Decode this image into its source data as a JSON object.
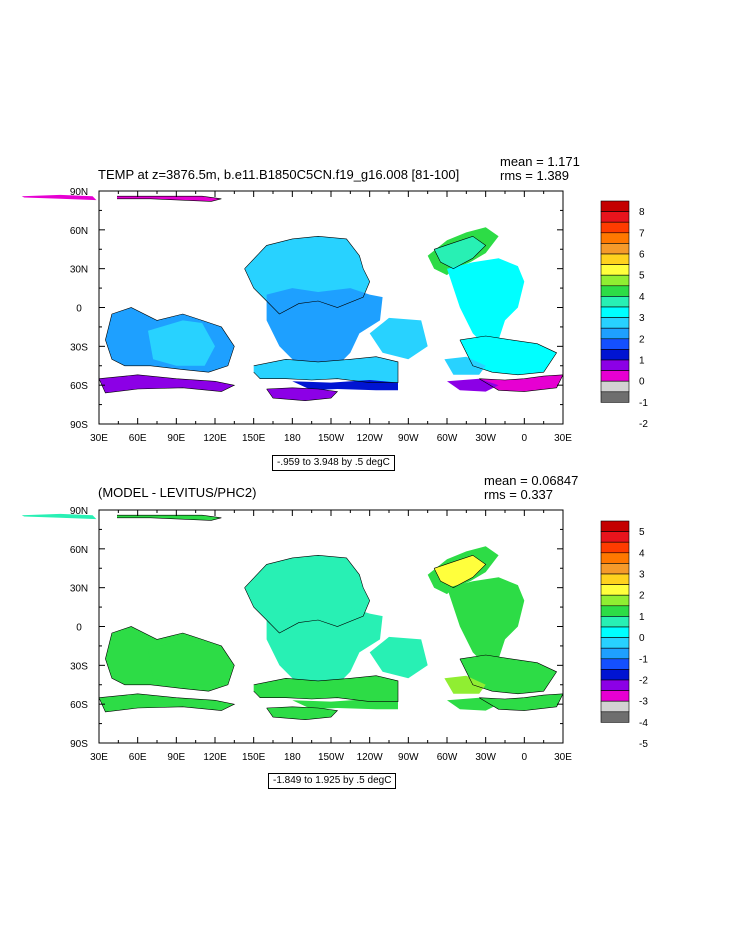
{
  "chart_data": [
    {
      "type": "heatmap",
      "title": "TEMP at z=3876.5m, b.e11.B1850C5CN.f19_g16.008 [81-100]",
      "mean_label": "mean = 1.171",
      "rms_label": "rms = 1.389",
      "range_label": "-.959 to 3.948 by .5 degC",
      "x_ticks": [
        "30E",
        "60E",
        "90E",
        "120E",
        "150E",
        "180",
        "150W",
        "120W",
        "90W",
        "60W",
        "30W",
        "0",
        "30E"
      ],
      "y_ticks": [
        "90N",
        "60N",
        "30N",
        "0",
        "30S",
        "60S",
        "90S"
      ],
      "colorbar_labels": [
        "8",
        "7",
        "6",
        "5",
        "4",
        "3",
        "2",
        "1",
        "0",
        "-1",
        "-2"
      ],
      "colorbar_colors": [
        "#c40000",
        "#e8141c",
        "#ff3c00",
        "#ff7800",
        "#f59a2a",
        "#ffd21e",
        "#ffff3c",
        "#90ee32",
        "#2ddc46",
        "#28f0b4",
        "#00ffff",
        "#28d2ff",
        "#1ea0ff",
        "#1450ff",
        "#0014d2",
        "#8c00e6",
        "#e600d2",
        "#d2d2d2",
        "#6e6e6e"
      ],
      "regions": [
        {
          "name": "arctic-west",
          "lon": [
            44,
            60,
            110,
            125,
            117,
            70,
            44
          ],
          "lat": [
            86,
            86,
            86,
            84,
            82,
            84,
            84
          ],
          "color": "#e600d2"
        },
        {
          "name": "arctic-east",
          "lon": [
            -30,
            0,
            25,
            28,
            0,
            -28,
            -30
          ],
          "lat": [
            86,
            87,
            86,
            83,
            84,
            85,
            86
          ],
          "color": "#e600d2"
        },
        {
          "name": "pacific-north",
          "lon": [
            143,
            160,
            180,
            200,
            222,
            232,
            235,
            240,
            235,
            215,
            200,
            185,
            170,
            160,
            150,
            143
          ],
          "lat": [
            30,
            48,
            53,
            55,
            53,
            40,
            30,
            20,
            8,
            0,
            5,
            3,
            -5,
            5,
            15,
            30
          ],
          "color": "#28d2ff"
        },
        {
          "name": "pacific-central",
          "lon": [
            160,
            180,
            200,
            225,
            240,
            250,
            248,
            232,
            225,
            215,
            200,
            185,
            170,
            160
          ],
          "lat": [
            10,
            15,
            12,
            15,
            10,
            8,
            -10,
            -20,
            -35,
            -45,
            -48,
            -45,
            -30,
            -10
          ],
          "color": "#1ea0ff"
        },
        {
          "name": "pacific-south",
          "lon": [
            150,
            175,
            200,
            225,
            245,
            262,
            262,
            240,
            215,
            195,
            175,
            155,
            150
          ],
          "lat": [
            -45,
            -40,
            -42,
            -40,
            -38,
            -42,
            -58,
            -58,
            -55,
            -56,
            -55,
            -55,
            -50
          ],
          "color": "#28d2ff"
        },
        {
          "name": "pacific-southeast",
          "lon": [
            255,
            280,
            285,
            270,
            250,
            240,
            255
          ],
          "lat": [
            -8,
            -10,
            -30,
            -40,
            -35,
            -20,
            -8
          ],
          "color": "#28d2ff"
        },
        {
          "name": "indian-ocean",
          "lon": [
            40,
            55,
            75,
            95,
            110,
            125,
            135,
            130,
            115,
            95,
            70,
            50,
            40,
            35,
            40
          ],
          "lat": [
            -5,
            0,
            -10,
            -5,
            -10,
            -15,
            -30,
            -45,
            -50,
            -48,
            -45,
            -45,
            -40,
            -25,
            -5
          ],
          "color": "#1ea0ff"
        },
        {
          "name": "indian-basin",
          "lon": [
            68,
            95,
            110,
            120,
            112,
            90,
            72,
            68
          ],
          "lat": [
            -18,
            -10,
            -12,
            -30,
            -45,
            -45,
            -40,
            -18
          ],
          "color": "#28d2ff"
        },
        {
          "name": "southern-ocean-indian",
          "lon": [
            30,
            60,
            90,
            120,
            135,
            125,
            95,
            60,
            35,
            30
          ],
          "lat": [
            -55,
            -52,
            -55,
            -57,
            -60,
            -65,
            -62,
            -63,
            -66,
            -55
          ],
          "color": "#8c00e6"
        },
        {
          "name": "southern-ocean-pacific",
          "lon": [
            180,
            210,
            240,
            262,
            262,
            245,
            215,
            195,
            180
          ],
          "lat": [
            -57,
            -58,
            -56,
            -58,
            -64,
            -64,
            -63,
            -64,
            -57
          ],
          "color": "#0014d2"
        },
        {
          "name": "southern-ocean-ross",
          "lon": [
            160,
            180,
            200,
            215,
            210,
            190,
            165,
            160
          ],
          "lat": [
            -63,
            -62,
            -63,
            -65,
            -70,
            -72,
            -70,
            -63
          ],
          "color": "#8c00e6"
        },
        {
          "name": "atlantic-north",
          "lon": [
            285,
            300,
            315,
            330,
            340,
            330,
            318,
            305,
            300,
            290,
            285
          ],
          "lat": [
            40,
            52,
            58,
            62,
            55,
            42,
            35,
            30,
            25,
            30,
            40
          ],
          "color": "#2ddc46"
        },
        {
          "name": "atlantic-gulf",
          "lon": [
            290,
            305,
            320,
            330,
            320,
            305,
            295,
            290
          ],
          "lat": [
            45,
            50,
            55,
            48,
            38,
            30,
            35,
            45
          ],
          "color": "#28f0b4"
        },
        {
          "name": "atlantic-central",
          "lon": [
            300,
            320,
            340,
            355,
            360,
            355,
            345,
            340,
            330,
            320,
            310,
            300
          ],
          "lat": [
            30,
            35,
            38,
            32,
            20,
            0,
            -10,
            -25,
            -30,
            -20,
            0,
            30
          ],
          "color": "#00ffff"
        },
        {
          "name": "atlantic-south",
          "lon": [
            310,
            330,
            350,
            370,
            385,
            375,
            355,
            335,
            320,
            310
          ],
          "lat": [
            -25,
            -22,
            -25,
            -28,
            -35,
            -50,
            -52,
            -50,
            -45,
            -25
          ],
          "color": "#00ffff"
        },
        {
          "name": "atlantic-southwest",
          "lon": [
            298,
            315,
            330,
            325,
            305,
            298
          ],
          "lat": [
            -40,
            -38,
            -45,
            -52,
            -52,
            -40
          ],
          "color": "#28d2ff"
        },
        {
          "name": "weddell",
          "lon": [
            325,
            345,
            360,
            375,
            390,
            385,
            360,
            340,
            325
          ],
          "lat": [
            -55,
            -56,
            -55,
            -53,
            -52,
            -62,
            -65,
            -64,
            -55
          ],
          "color": "#e600d2"
        },
        {
          "name": "weddell-edge",
          "lon": [
            300,
            325,
            340,
            330,
            310,
            300
          ],
          "lat": [
            -57,
            -55,
            -60,
            -65,
            -64,
            -57
          ],
          "color": "#8c00e6"
        }
      ]
    },
    {
      "type": "heatmap",
      "title": "(MODEL - LEVITUS/PHC2)",
      "mean_label": "mean = 0.06847",
      "rms_label": "rms = 0.337",
      "range_label": "-1.849 to 1.925 by .5 degC",
      "x_ticks": [
        "30E",
        "60E",
        "90E",
        "120E",
        "150E",
        "180",
        "150W",
        "120W",
        "90W",
        "60W",
        "30W",
        "0",
        "30E"
      ],
      "y_ticks": [
        "90N",
        "60N",
        "30N",
        "0",
        "30S",
        "60S",
        "90S"
      ],
      "colorbar_labels": [
        "5",
        "4",
        "3",
        "2",
        "1",
        "0",
        "-1",
        "-2",
        "-3",
        "-4",
        "-5"
      ],
      "colorbar_colors": [
        "#c40000",
        "#e8141c",
        "#ff3c00",
        "#ff7800",
        "#f59a2a",
        "#ffd21e",
        "#ffff3c",
        "#90ee32",
        "#2ddc46",
        "#28f0b4",
        "#00ffff",
        "#28d2ff",
        "#1ea0ff",
        "#1450ff",
        "#0014d2",
        "#8c00e6",
        "#e600d2",
        "#d2d2d2",
        "#6e6e6e"
      ],
      "regions": [
        {
          "name": "arctic-west",
          "lon": [
            44,
            60,
            110,
            125,
            117,
            70,
            44
          ],
          "lat": [
            86,
            86,
            86,
            84,
            82,
            84,
            84
          ],
          "color": "#2ddc46"
        },
        {
          "name": "arctic-east",
          "lon": [
            -30,
            0,
            25,
            28,
            0,
            -28,
            -30
          ],
          "lat": [
            86,
            87,
            86,
            83,
            84,
            85,
            86
          ],
          "color": "#28f0b4"
        },
        {
          "name": "pacific-north",
          "lon": [
            143,
            160,
            180,
            200,
            222,
            232,
            235,
            240,
            235,
            215,
            200,
            185,
            170,
            160,
            150,
            143
          ],
          "lat": [
            30,
            48,
            53,
            55,
            53,
            40,
            30,
            20,
            8,
            0,
            5,
            3,
            -5,
            5,
            15,
            30
          ],
          "color": "#28f0b4"
        },
        {
          "name": "pacific-central",
          "lon": [
            160,
            180,
            200,
            225,
            240,
            250,
            248,
            232,
            225,
            215,
            200,
            185,
            170,
            160
          ],
          "lat": [
            10,
            15,
            12,
            15,
            10,
            8,
            -10,
            -20,
            -35,
            -45,
            -48,
            -45,
            -30,
            -10
          ],
          "color": "#28f0b4"
        },
        {
          "name": "pacific-south",
          "lon": [
            150,
            175,
            200,
            225,
            245,
            262,
            262,
            240,
            215,
            195,
            175,
            155,
            150
          ],
          "lat": [
            -45,
            -40,
            -42,
            -40,
            -38,
            -42,
            -58,
            -58,
            -55,
            -56,
            -55,
            -55,
            -50
          ],
          "color": "#2ddc46"
        },
        {
          "name": "pacific-southeast",
          "lon": [
            255,
            280,
            285,
            270,
            250,
            240,
            255
          ],
          "lat": [
            -8,
            -10,
            -30,
            -40,
            -35,
            -20,
            -8
          ],
          "color": "#28f0b4"
        },
        {
          "name": "indian-ocean",
          "lon": [
            40,
            55,
            75,
            95,
            110,
            125,
            135,
            130,
            115,
            95,
            70,
            50,
            40,
            35,
            40
          ],
          "lat": [
            -5,
            0,
            -10,
            -5,
            -10,
            -15,
            -30,
            -45,
            -50,
            -48,
            -45,
            -45,
            -40,
            -25,
            -5
          ],
          "color": "#2ddc46"
        },
        {
          "name": "indian-basin",
          "lon": [
            68,
            95,
            110,
            120,
            112,
            90,
            72,
            68
          ],
          "lat": [
            -18,
            -10,
            -12,
            -30,
            -45,
            -45,
            -40,
            -18
          ],
          "color": "#2ddc46"
        },
        {
          "name": "southern-ocean-indian",
          "lon": [
            30,
            60,
            90,
            120,
            135,
            125,
            95,
            60,
            35,
            30
          ],
          "lat": [
            -55,
            -52,
            -55,
            -57,
            -60,
            -65,
            -62,
            -63,
            -66,
            -55
          ],
          "color": "#2ddc46"
        },
        {
          "name": "southern-ocean-pacific",
          "lon": [
            180,
            210,
            240,
            262,
            262,
            245,
            215,
            195,
            180
          ],
          "lat": [
            -57,
            -58,
            -56,
            -58,
            -64,
            -64,
            -63,
            -64,
            -57
          ],
          "color": "#2ddc46"
        },
        {
          "name": "southern-ocean-ross",
          "lon": [
            160,
            180,
            200,
            215,
            210,
            190,
            165,
            160
          ],
          "lat": [
            -63,
            -62,
            -63,
            -65,
            -70,
            -72,
            -70,
            -63
          ],
          "color": "#2ddc46"
        },
        {
          "name": "atlantic-north",
          "lon": [
            285,
            300,
            315,
            330,
            340,
            330,
            318,
            305,
            300,
            290,
            285
          ],
          "lat": [
            40,
            52,
            58,
            62,
            55,
            42,
            35,
            30,
            25,
            30,
            40
          ],
          "color": "#2ddc46"
        },
        {
          "name": "atlantic-gulf",
          "lon": [
            290,
            305,
            320,
            330,
            320,
            305,
            295,
            290
          ],
          "lat": [
            45,
            50,
            55,
            48,
            38,
            30,
            35,
            45
          ],
          "color": "#ffff3c"
        },
        {
          "name": "atlantic-central",
          "lon": [
            300,
            320,
            340,
            355,
            360,
            355,
            345,
            340,
            330,
            320,
            310,
            300
          ],
          "lat": [
            30,
            35,
            38,
            32,
            20,
            0,
            -10,
            -25,
            -30,
            -20,
            0,
            30
          ],
          "color": "#2ddc46"
        },
        {
          "name": "atlantic-south",
          "lon": [
            310,
            330,
            350,
            370,
            385,
            375,
            355,
            335,
            320,
            310
          ],
          "lat": [
            -25,
            -22,
            -25,
            -28,
            -35,
            -50,
            -52,
            -50,
            -45,
            -25
          ],
          "color": "#2ddc46"
        },
        {
          "name": "atlantic-southwest",
          "lon": [
            298,
            315,
            330,
            325,
            305,
            298
          ],
          "lat": [
            -40,
            -38,
            -45,
            -52,
            -52,
            -40
          ],
          "color": "#90ee32"
        },
        {
          "name": "weddell",
          "lon": [
            325,
            345,
            360,
            375,
            390,
            385,
            360,
            340,
            325
          ],
          "lat": [
            -55,
            -56,
            -55,
            -53,
            -52,
            -62,
            -65,
            -64,
            -55
          ],
          "color": "#2ddc46"
        },
        {
          "name": "weddell-edge",
          "lon": [
            300,
            325,
            340,
            330,
            310,
            300
          ],
          "lat": [
            -57,
            -55,
            -60,
            -65,
            -64,
            -57
          ],
          "color": "#2ddc46"
        }
      ]
    }
  ]
}
